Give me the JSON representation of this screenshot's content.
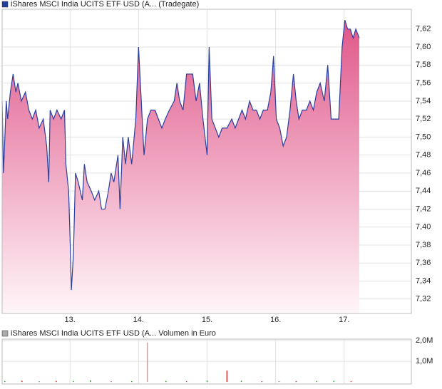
{
  "chart_data": [
    {
      "type": "area",
      "legend": "iShares MSCI India UCITS ETF USD (A... (Tradegate)",
      "legend_color": "#1f3f9a",
      "x": [
        12.01,
        12.03,
        12.07,
        12.09,
        12.13,
        12.17,
        12.21,
        12.24,
        12.29,
        12.35,
        12.4,
        12.45,
        12.5,
        12.55,
        12.61,
        12.66,
        12.69,
        12.71,
        12.76,
        12.81,
        12.87,
        12.92,
        12.94,
        12.98,
        13.0,
        13.02,
        13.05,
        13.08,
        13.12,
        13.18,
        13.21,
        13.25,
        13.31,
        13.36,
        13.42,
        13.46,
        13.51,
        13.56,
        13.6,
        13.64,
        13.7,
        13.73,
        13.77,
        13.81,
        13.85,
        13.9,
        13.96,
        14.0,
        14.04,
        14.08,
        14.13,
        14.18,
        14.24,
        14.29,
        14.34,
        14.39,
        14.45,
        14.52,
        14.56,
        14.6,
        14.65,
        14.7,
        14.79,
        14.84,
        14.89,
        14.94,
        15.0,
        15.03,
        15.07,
        15.12,
        15.17,
        15.22,
        15.29,
        15.36,
        15.41,
        15.46,
        15.51,
        15.56,
        15.62,
        15.67,
        15.72,
        15.77,
        15.82,
        15.88,
        15.93,
        15.97,
        16.01,
        16.06,
        16.11,
        16.16,
        16.21,
        16.26,
        16.3,
        16.34,
        16.39,
        16.45,
        16.5,
        16.55,
        16.6,
        16.65,
        16.71,
        16.76,
        16.81,
        16.86,
        16.92,
        16.97,
        17.01,
        17.05,
        17.09,
        17.13,
        17.17,
        17.22
      ],
      "series": [
        {
          "color": "#2a3f9e",
          "values": [
            7.54,
            7.46,
            7.54,
            7.52,
            7.55,
            7.57,
            7.55,
            7.56,
            7.54,
            7.55,
            7.53,
            7.52,
            7.53,
            7.51,
            7.52,
            7.49,
            7.45,
            7.53,
            7.52,
            7.53,
            7.52,
            7.53,
            7.47,
            7.44,
            7.39,
            7.33,
            7.37,
            7.46,
            7.45,
            7.43,
            7.47,
            7.45,
            7.44,
            7.43,
            7.44,
            7.42,
            7.42,
            7.44,
            7.46,
            7.45,
            7.48,
            7.42,
            7.5,
            7.47,
            7.5,
            7.47,
            7.52,
            7.6,
            7.54,
            7.48,
            7.52,
            7.53,
            7.53,
            7.52,
            7.51,
            7.52,
            7.53,
            7.54,
            7.56,
            7.54,
            7.53,
            7.57,
            7.57,
            7.54,
            7.56,
            7.52,
            7.48,
            7.6,
            7.52,
            7.51,
            7.5,
            7.51,
            7.51,
            7.52,
            7.51,
            7.52,
            7.53,
            7.52,
            7.54,
            7.53,
            7.53,
            7.52,
            7.53,
            7.53,
            7.55,
            7.59,
            7.52,
            7.51,
            7.49,
            7.5,
            7.53,
            7.57,
            7.54,
            7.52,
            7.53,
            7.53,
            7.54,
            7.53,
            7.55,
            7.56,
            7.54,
            7.58,
            7.52,
            7.52,
            7.52,
            7.6,
            7.63,
            7.62,
            7.62,
            7.61,
            7.62,
            7.61
          ]
        }
      ],
      "xlim": [
        12.01,
        17.98
      ],
      "xticks": [
        {
          "value": 13,
          "label": "13."
        },
        {
          "value": 14,
          "label": "14."
        },
        {
          "value": 15,
          "label": "15."
        },
        {
          "value": 16,
          "label": "16."
        },
        {
          "value": 17,
          "label": "17."
        }
      ],
      "ylim": [
        7.304,
        7.642
      ],
      "yticks": [
        {
          "value": 7.32,
          "label": "7,32"
        },
        {
          "value": 7.34,
          "label": "7,34"
        },
        {
          "value": 7.36,
          "label": "7,36"
        },
        {
          "value": 7.38,
          "label": "7,38"
        },
        {
          "value": 7.4,
          "label": "7,40"
        },
        {
          "value": 7.42,
          "label": "7,42"
        },
        {
          "value": 7.44,
          "label": "7,44"
        },
        {
          "value": 7.46,
          "label": "7,46"
        },
        {
          "value": 7.48,
          "label": "7,48"
        },
        {
          "value": 7.5,
          "label": "7,50"
        },
        {
          "value": 7.52,
          "label": "7,52"
        },
        {
          "value": 7.54,
          "label": "7,54"
        },
        {
          "value": 7.56,
          "label": "7,56"
        },
        {
          "value": 7.58,
          "label": "7,58"
        },
        {
          "value": 7.6,
          "label": "7,60"
        },
        {
          "value": 7.62,
          "label": "7,62"
        }
      ],
      "grid": true
    },
    {
      "type": "bar",
      "legend": "iShares MSCI India UCITS ETF USD (A... Volumen in Euro",
      "legend_color": "#aaaaaa",
      "x": [
        12.05,
        12.3,
        12.55,
        12.8,
        13.05,
        13.3,
        13.6,
        13.9,
        14.13,
        14.4,
        14.7,
        15.0,
        15.29,
        15.5,
        15.8,
        16.05,
        16.3,
        16.6,
        16.85,
        17.1
      ],
      "values": [
        40000,
        60000,
        30000,
        50000,
        45000,
        80000,
        30000,
        40000,
        1900000,
        50000,
        35000,
        70000,
        550000,
        60000,
        40000,
        35000,
        45000,
        50000,
        60000,
        40000
      ],
      "colors": [
        "#3a9a3a",
        "#d03030",
        "#3a9a3a",
        "#d03030",
        "#3a9a3a",
        "#3a9a3a",
        "#d03030",
        "#3a9a3a",
        "#c8a0a0",
        "#3a9a3a",
        "#d03030",
        "#3a9a3a",
        "#d03030",
        "#3a9a3a",
        "#d03030",
        "#3a9a3a",
        "#d03030",
        "#3a9a3a",
        "#3a9a3a",
        "#d03030"
      ],
      "xlim": [
        12.01,
        17.98
      ],
      "xticks": [
        13,
        14,
        15,
        16,
        17
      ],
      "ylim": [
        -100000,
        2070000
      ],
      "yticks": [
        {
          "value": 1000000,
          "label": "1,0M"
        },
        {
          "value": 2000000,
          "label": "2,0M"
        }
      ],
      "grid": true
    }
  ]
}
